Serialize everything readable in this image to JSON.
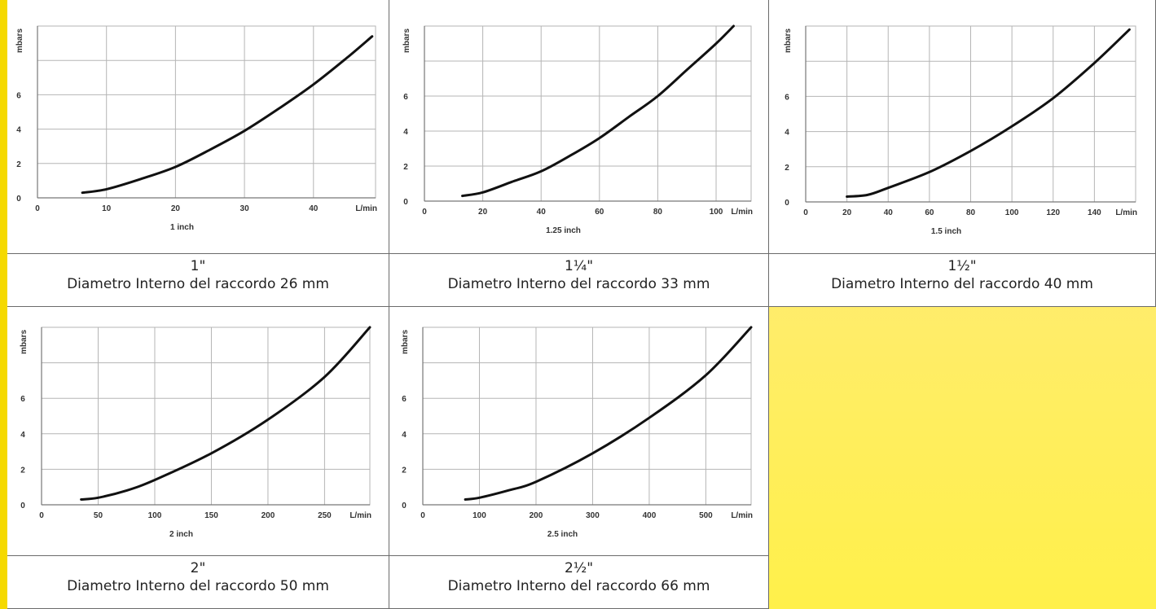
{
  "colors": {
    "background_top": "#ffe98c",
    "background_bottom": "#fff04a",
    "curve": "#111111",
    "grid": "#b5b5b5"
  },
  "chart_data": [
    {
      "type": "line",
      "xlabel": "1  inch",
      "ylabel": "mbars",
      "x_unit_label": "L/min",
      "xlim": [
        0,
        49
      ],
      "ylim": [
        0,
        10
      ],
      "xticks": [
        0,
        10,
        20,
        30,
        40
      ],
      "yticks": [
        0,
        2,
        4,
        6,
        8
      ],
      "ytick_labels": [
        "0",
        "2",
        "4",
        "6",
        ""
      ],
      "grid": true,
      "series": [
        {
          "x": [
            6.5,
            10,
            15,
            20,
            25,
            30,
            35,
            40,
            45,
            48.5
          ],
          "y": [
            0.3,
            0.5,
            1.1,
            1.8,
            2.8,
            3.9,
            5.2,
            6.6,
            8.2,
            9.4
          ]
        }
      ],
      "caption": {
        "size": "1\"",
        "description": "Diametro Interno del raccordo 26 mm"
      }
    },
    {
      "type": "line",
      "xlabel": "1.25  inch",
      "ylabel": "mbars",
      "x_unit_label": "L/min",
      "xlim": [
        0,
        112
      ],
      "ylim": [
        0,
        10
      ],
      "xticks": [
        0,
        20,
        40,
        60,
        80,
        100
      ],
      "yticks": [
        0,
        2,
        4,
        6,
        8
      ],
      "ytick_labels": [
        "0",
        "2",
        "4",
        "6",
        ""
      ],
      "grid": true,
      "series": [
        {
          "x": [
            13,
            20,
            30,
            40,
            50,
            60,
            70,
            80,
            90,
            100,
            106
          ],
          "y": [
            0.3,
            0.5,
            1.1,
            1.7,
            2.6,
            3.6,
            4.8,
            6.0,
            7.5,
            9.0,
            10.0
          ]
        }
      ],
      "caption": {
        "size": "1¼\"",
        "description": "Diametro Interno del raccordo 33 mm"
      }
    },
    {
      "type": "line",
      "xlabel": "1.5  inch",
      "ylabel": "mbars",
      "x_unit_label": "L/min",
      "xlim": [
        0,
        160
      ],
      "ylim": [
        0,
        10
      ],
      "xticks": [
        0,
        20,
        40,
        60,
        80,
        100,
        120,
        140
      ],
      "yticks": [
        0,
        2,
        4,
        6,
        8
      ],
      "ytick_labels": [
        "0",
        "2",
        "4",
        "6",
        ""
      ],
      "grid": true,
      "series": [
        {
          "x": [
            20,
            30,
            40,
            60,
            80,
            100,
            120,
            140,
            157
          ],
          "y": [
            0.3,
            0.4,
            0.8,
            1.7,
            2.9,
            4.3,
            5.9,
            7.9,
            9.8
          ]
        }
      ],
      "caption": {
        "size": "1½\"",
        "description": "Diametro Interno del raccordo 40 mm"
      }
    },
    {
      "type": "line",
      "xlabel": "2  inch",
      "ylabel": "mbars",
      "x_unit_label": "L/min",
      "xlim": [
        0,
        290
      ],
      "ylim": [
        0,
        10
      ],
      "xticks": [
        0,
        50,
        100,
        150,
        200,
        250
      ],
      "yticks": [
        0,
        2,
        4,
        6,
        8
      ],
      "ytick_labels": [
        "0",
        "2",
        "4",
        "6",
        ""
      ],
      "grid": true,
      "series": [
        {
          "x": [
            35,
            50,
            75,
            100,
            150,
            200,
            250,
            290
          ],
          "y": [
            0.3,
            0.4,
            0.8,
            1.4,
            2.9,
            4.8,
            7.2,
            10.0
          ]
        }
      ],
      "caption": {
        "size": "2\"",
        "description": "Diametro Interno del raccordo 50 mm"
      }
    },
    {
      "type": "line",
      "xlabel": "2.5  inch",
      "ylabel": "mbars",
      "x_unit_label": "L/min",
      "xlim": [
        0,
        580
      ],
      "ylim": [
        0,
        10
      ],
      "xticks": [
        0,
        100,
        200,
        300,
        400,
        500
      ],
      "yticks": [
        0,
        2,
        4,
        6,
        8
      ],
      "ytick_labels": [
        "0",
        "2",
        "4",
        "6",
        ""
      ],
      "grid": true,
      "series": [
        {
          "x": [
            75,
            100,
            150,
            200,
            300,
            400,
            500,
            580
          ],
          "y": [
            0.3,
            0.4,
            0.8,
            1.3,
            2.9,
            4.9,
            7.3,
            10.0
          ]
        }
      ],
      "caption": {
        "size": "2½\"",
        "description": "Diametro Interno del raccordo 66 mm"
      }
    }
  ]
}
